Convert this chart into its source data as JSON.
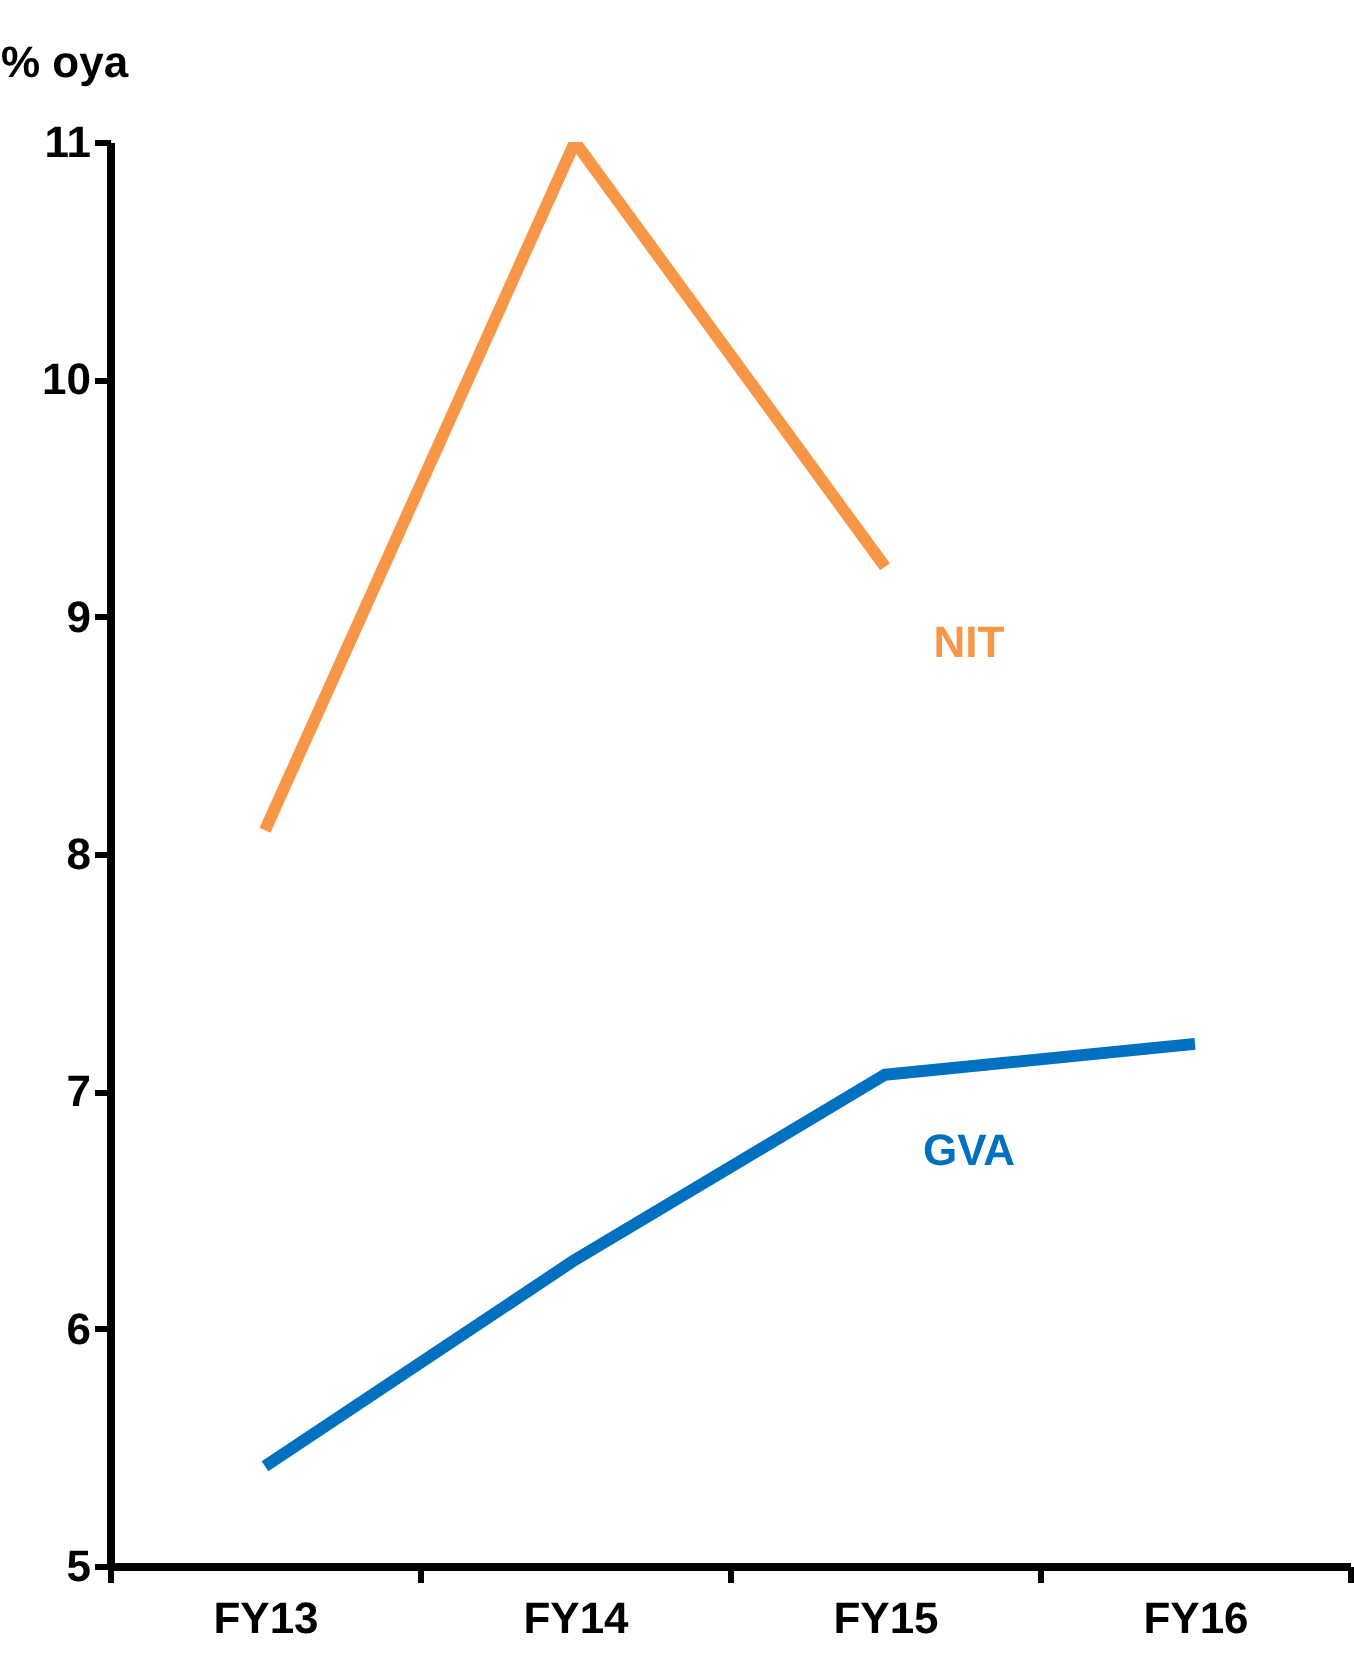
{
  "chart_data": {
    "type": "line",
    "ylabel": "% oya",
    "categories": [
      "FY13",
      "FY14",
      "FY15",
      "FY16"
    ],
    "series": [
      {
        "name": "NIT",
        "color": "#f79646",
        "values": [
          8.1,
          11.0,
          9.21,
          null
        ]
      },
      {
        "name": "GVA",
        "color": "#0070c0",
        "values": [
          5.42,
          6.29,
          7.07,
          7.2
        ]
      }
    ],
    "ylim": [
      5,
      11
    ],
    "yticks": [
      5,
      6,
      7,
      8,
      9,
      10,
      11
    ],
    "grid": false,
    "legend": false,
    "marker": "none",
    "line_style": "solid"
  }
}
